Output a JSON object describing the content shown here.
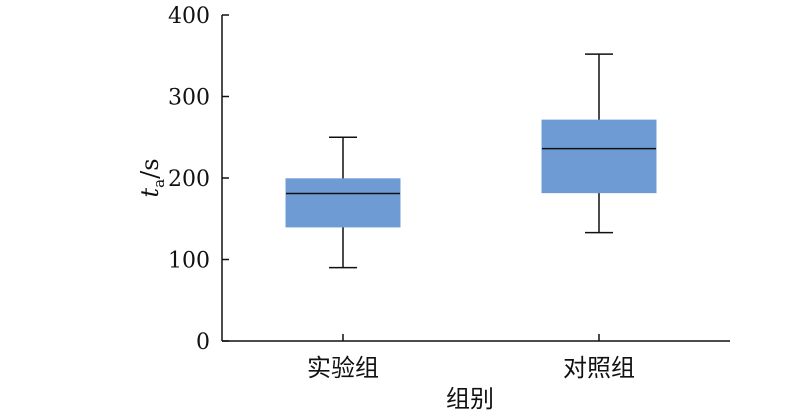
{
  "chart_data": {
    "type": "box",
    "title": "",
    "xlabel": "组别",
    "ylabel": {
      "var": "t",
      "sub": "a",
      "unit": "/s"
    },
    "ylim": [
      0,
      400
    ],
    "yticks": [
      0,
      100,
      200,
      300,
      400
    ],
    "grid": false,
    "box_color": "#6f9bd4",
    "categories": [
      "实验组",
      "对照组"
    ],
    "boxes": [
      {
        "category": "实验组",
        "min": 90,
        "q1": 140,
        "median": 181,
        "q3": 199,
        "max": 250
      },
      {
        "category": "对照组",
        "min": 133,
        "q1": 182,
        "median": 236,
        "q3": 271,
        "max": 352
      }
    ]
  }
}
